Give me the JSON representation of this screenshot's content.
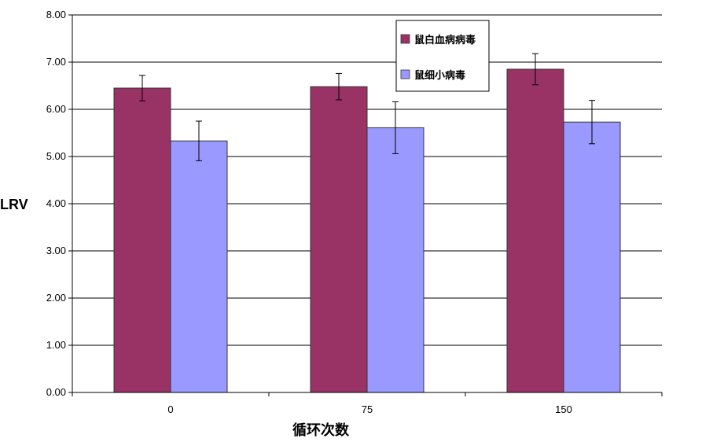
{
  "chart_data": {
    "type": "bar",
    "title": "",
    "xlabel": "循环次数",
    "ylabel": "LRV",
    "categories": [
      "0",
      "75",
      "150"
    ],
    "ylim": [
      0,
      8
    ],
    "yticks": [
      "0.00",
      "1.00",
      "2.00",
      "3.00",
      "4.00",
      "5.00",
      "6.00",
      "7.00",
      "8.00"
    ],
    "grid": true,
    "legend_position": "top-right",
    "series": [
      {
        "name": "鼠白血病病毒",
        "color": "#993366",
        "values": [
          6.45,
          6.48,
          6.85
        ],
        "errors": [
          0.27,
          0.28,
          0.33
        ]
      },
      {
        "name": "鼠细小病毒",
        "color": "#9999FF",
        "values": [
          5.33,
          5.61,
          5.73
        ],
        "errors": [
          0.42,
          0.55,
          0.46
        ]
      }
    ]
  }
}
